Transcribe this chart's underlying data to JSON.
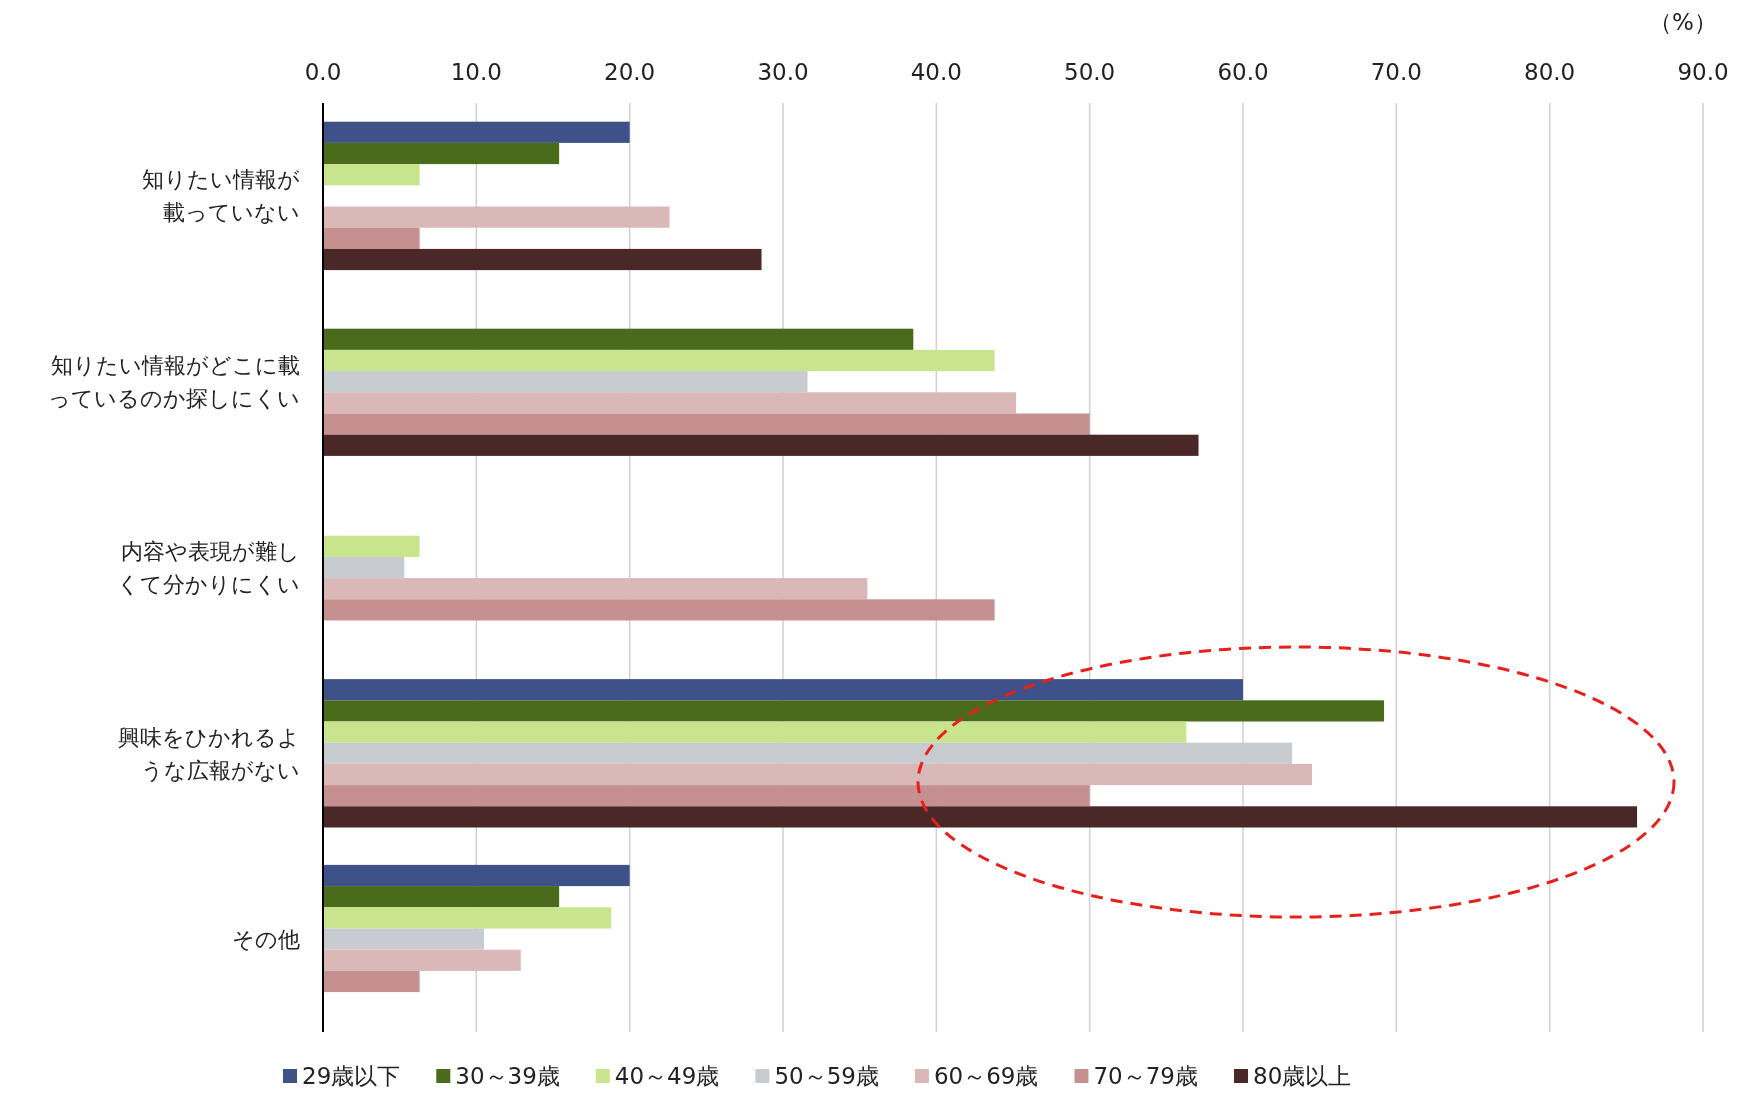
{
  "chart_data": {
    "type": "bar",
    "orientation": "horizontal",
    "xlabel": "（%）",
    "categories": [
      "知りたい情報が載っていない",
      "知りたい情報がどこに載っているのか探しにくい",
      "内容や表現が難しくて分かりにくい",
      "興味をひかれるような広報がない",
      "その他"
    ],
    "series": [
      {
        "name": "29歳以下",
        "color": "#3f5189",
        "values": [
          20.0,
          0,
          0,
          60.0,
          20.0
        ]
      },
      {
        "name": "30～39歳",
        "color": "#4a6a1c",
        "values": [
          15.4,
          38.5,
          0,
          69.2,
          15.4
        ]
      },
      {
        "name": "40～49歳",
        "color": "#c8e48c",
        "values": [
          6.3,
          43.8,
          6.3,
          56.3,
          18.8
        ]
      },
      {
        "name": "50～59歳",
        "color": "#c8cbcf",
        "values": [
          0,
          31.6,
          5.3,
          63.2,
          10.5
        ]
      },
      {
        "name": "60～69歳",
        "color": "#dbb8b8",
        "values": [
          22.6,
          45.2,
          35.5,
          64.5,
          12.9
        ]
      },
      {
        "name": "70～79歳",
        "color": "#c69090",
        "values": [
          6.3,
          50.0,
          43.8,
          50.0,
          6.3
        ]
      },
      {
        "name": "80歳以上",
        "color": "#4b2828",
        "values": [
          28.6,
          57.1,
          0,
          85.7,
          0
        ]
      }
    ],
    "xlim": [
      0,
      90
    ],
    "xticks": [
      {
        "value": 0,
        "label": "0.0"
      },
      {
        "value": 10,
        "label": "10.0"
      },
      {
        "value": 20,
        "label": "20.0"
      },
      {
        "value": 30,
        "label": "30.0"
      },
      {
        "value": 40,
        "label": "40.0"
      },
      {
        "value": 50,
        "label": "50.0"
      },
      {
        "value": 60,
        "label": "60.0"
      },
      {
        "value": 70,
        "label": "70.0"
      },
      {
        "value": 80,
        "label": "80.0"
      },
      {
        "value": 90,
        "label": "90.0"
      }
    ],
    "grid": "x",
    "legend": "bottom"
  }
}
